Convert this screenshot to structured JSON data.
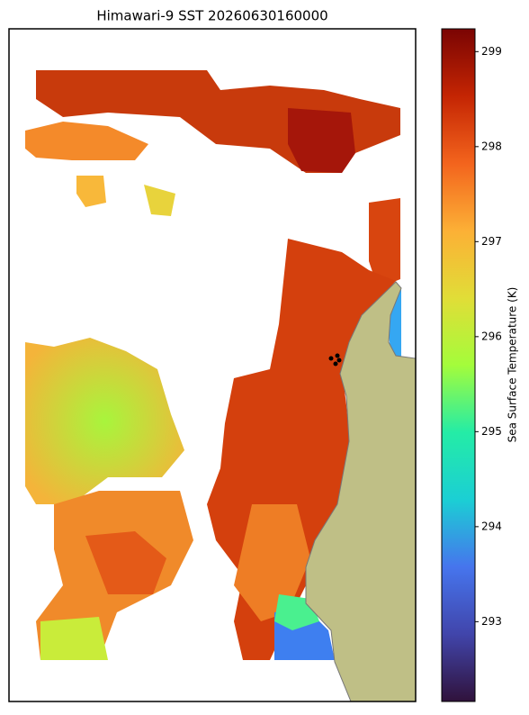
{
  "chart_data": {
    "type": "colormap",
    "title": "Himawari-9 SST 20260630160000",
    "ylabel": "Sea Surface Temperature (K)",
    "ylim": [
      292.16,
      299.24
    ],
    "yticks": [
      293,
      294,
      295,
      296,
      297,
      298,
      299
    ]
  }
}
